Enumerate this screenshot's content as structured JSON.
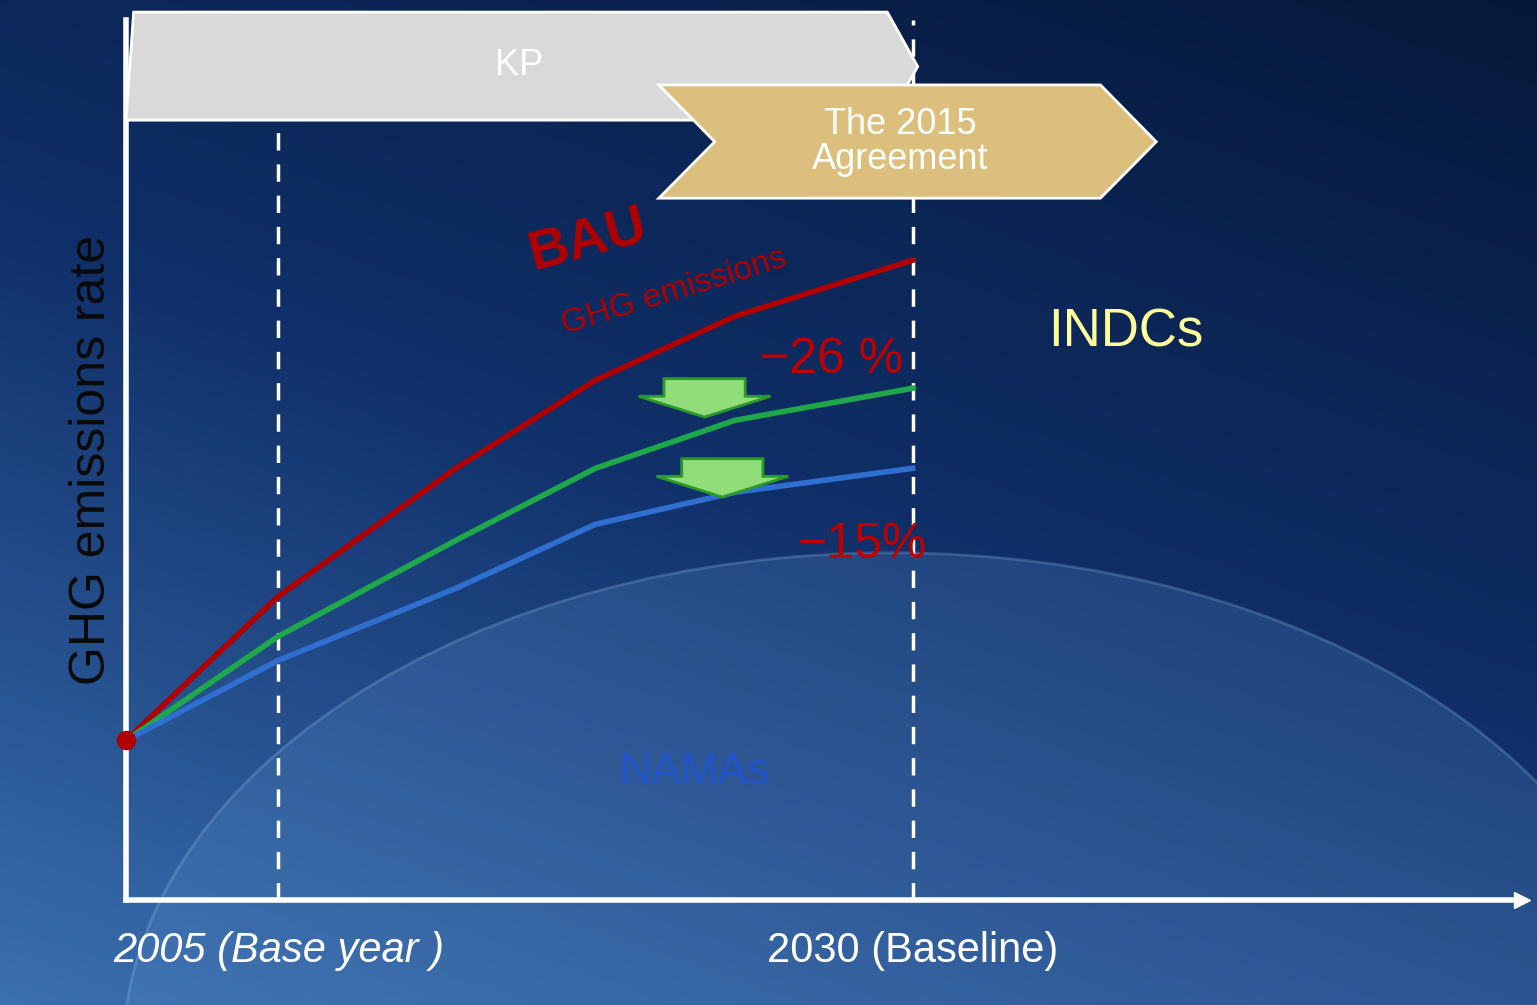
{
  "chart_data": {
    "type": "line",
    "y_label": "GHG emissions rate",
    "x": [
      1999,
      2005,
      2012,
      2017.5,
      2023,
      2030
    ],
    "series": [
      {
        "name": "BAU",
        "color": "#b00000",
        "values": [
          20,
          38,
          54,
          65,
          73,
          80
        ]
      },
      {
        "name": "INDCs",
        "color": "#1fa84a",
        "values": [
          20,
          33,
          45,
          54,
          60,
          64
        ]
      },
      {
        "name": "NAMAs",
        "color": "#2f6fd0",
        "values": [
          20,
          30,
          39,
          47,
          51,
          54
        ]
      }
    ],
    "xlim": [
      1999,
      2054
    ],
    "ylim": [
      0,
      110
    ],
    "xticks": [
      {
        "value": 2005,
        "label": "2005 (Base year )"
      },
      {
        "value": 2030,
        "label": "2030 (Baseline)"
      }
    ],
    "yticks": [],
    "tick_labels": "x",
    "annotations": [
      {
        "text": "KP"
      },
      {
        "text": "The 2015\nAgreement"
      },
      {
        "text": "GHG emissions"
      },
      {
        "text": "−26 %"
      },
      {
        "text": "−15%"
      }
    ]
  }
}
